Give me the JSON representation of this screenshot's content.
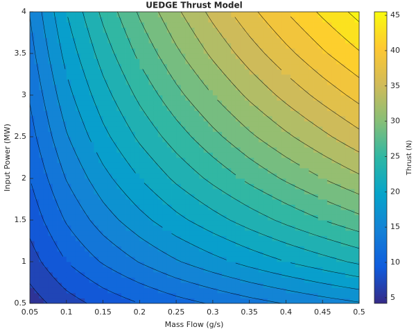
{
  "chart_data": {
    "type": "contourf",
    "title": "UEDGE Thrust Model",
    "x_label": "Mass Flow (g/s)",
    "y_label": "Input Power (MW)",
    "colorbar_label": "Thrust (N)",
    "x": [
      0.05,
      0.1,
      0.15,
      0.2,
      0.25,
      0.3,
      0.35,
      0.4,
      0.45,
      0.5
    ],
    "y": [
      0.5,
      1,
      1.5,
      2,
      2.5,
      3,
      3.5,
      4
    ],
    "z": [
      [
        5.0,
        7.1,
        8.7,
        10.0,
        11.2,
        12.2,
        13.2,
        14.1,
        15.0,
        15.8
      ],
      [
        7.1,
        10.0,
        12.2,
        14.1,
        15.8,
        17.3,
        18.7,
        20.0,
        21.2,
        22.4
      ],
      [
        8.7,
        12.2,
        15.0,
        17.3,
        19.4,
        21.2,
        22.9,
        24.5,
        26.0,
        27.4
      ],
      [
        10.0,
        14.1,
        17.3,
        20.0,
        22.4,
        24.5,
        26.5,
        28.3,
        30.0,
        31.6
      ],
      [
        11.2,
        15.8,
        19.4,
        22.4,
        25.0,
        27.4,
        29.6,
        31.6,
        33.5,
        35.4
      ],
      [
        12.2,
        17.3,
        21.2,
        24.5,
        27.4,
        30.0,
        32.4,
        34.6,
        36.7,
        38.7
      ],
      [
        13.2,
        18.7,
        22.9,
        26.5,
        29.6,
        32.4,
        35.0,
        37.4,
        39.7,
        41.8
      ],
      [
        14.1,
        20.0,
        24.5,
        28.3,
        31.6,
        34.6,
        37.4,
        40.0,
        42.4,
        44.7
      ]
    ],
    "levels": [
      6,
      8,
      10,
      12,
      14,
      16,
      18,
      20,
      22,
      24,
      26,
      28,
      30,
      32,
      34,
      36,
      38,
      40,
      42,
      44
    ],
    "colormap": "parula",
    "xlim": [
      0.05,
      0.5
    ],
    "xticks": [
      0.05,
      0.1,
      0.15,
      0.2,
      0.25,
      0.3,
      0.35,
      0.4,
      0.45,
      0.5
    ],
    "ylim": [
      0.5,
      4
    ],
    "yticks": [
      0.5,
      1,
      1.5,
      2,
      2.5,
      3,
      3.5,
      4
    ],
    "clim": [
      4.2,
      45.5
    ],
    "cticks": [
      5,
      10,
      15,
      20,
      25,
      30,
      35,
      40,
      45
    ]
  }
}
